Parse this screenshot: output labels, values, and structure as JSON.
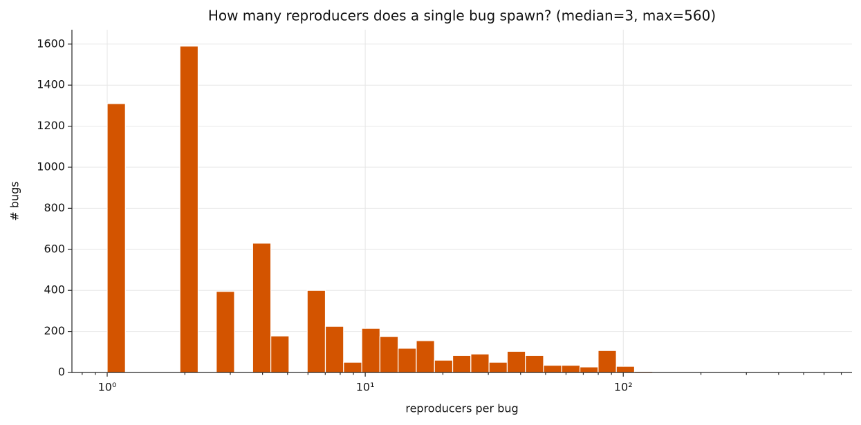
{
  "chart_data": {
    "type": "histogram",
    "title": "How many reproducers does a single bug spawn?  (median=3, max=560)",
    "x_label": "reproducers per bug",
    "y_label": "# bugs",
    "color": "#d35400",
    "xscale": "log",
    "grid": true,
    "bins": [
      1,
      1.1762,
      1.3834,
      1.627,
      1.9137,
      2.2508,
      2.6473,
      3.1136,
      3.6621,
      4.3072,
      5.066,
      5.9584,
      7.008,
      8.2426,
      9.6946,
      11.402,
      13.411,
      15.773,
      18.552,
      21.82,
      25.664,
      30.185,
      35.503,
      41.757,
      49.113,
      57.765,
      67.941,
      79.91,
      93.987,
      110.54,
      130.02,
      152.92,
      179.86,
      211.54,
      248.81,
      292.64,
      344.19,
      404.82,
      476.13,
      560
    ],
    "values": [
      1310,
      0,
      0,
      0,
      1590,
      0,
      395,
      0,
      630,
      178,
      0,
      400,
      225,
      50,
      215,
      175,
      118,
      155,
      60,
      83,
      90,
      50,
      103,
      83,
      35,
      35,
      27,
      107,
      30,
      5,
      0,
      0,
      0,
      0,
      0,
      0,
      0,
      0,
      3
    ],
    "xlim": [
      0.73,
      770
    ],
    "xticks": [
      {
        "value": 1,
        "label": "10⁰"
      },
      {
        "value": 10,
        "label": "10¹"
      },
      {
        "value": 100,
        "label": "10²"
      }
    ],
    "xminorticks": [
      0.8,
      0.9,
      2,
      3,
      4,
      5,
      6,
      7,
      8,
      9,
      20,
      30,
      40,
      50,
      60,
      70,
      80,
      90,
      200,
      300,
      400,
      500,
      600,
      700
    ],
    "ylim": [
      0,
      1670
    ],
    "yticks": [
      0,
      200,
      400,
      600,
      800,
      1000,
      1200,
      1400,
      1600
    ]
  }
}
